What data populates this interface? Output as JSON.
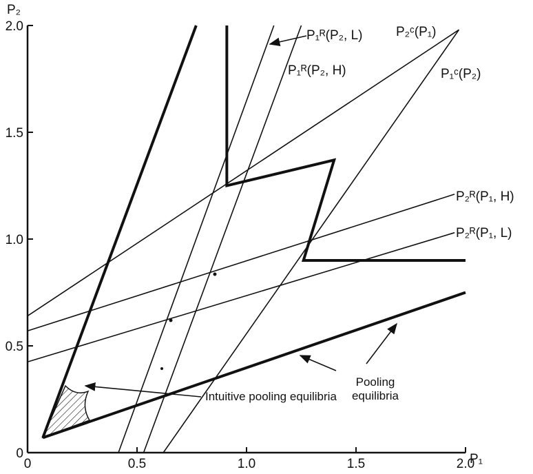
{
  "chart_data": {
    "type": "line",
    "x_label": "P₁",
    "y_label": "P₂",
    "xlim": [
      0,
      2.0
    ],
    "ylim": [
      0,
      2.0
    ],
    "xticks": [
      0,
      0.5,
      {
        "value": 1,
        "label": "1.0"
      },
      1.5,
      {
        "value": 2,
        "label": "2.0"
      }
    ],
    "yticks": [
      0,
      0.5,
      {
        "value": 1,
        "label": "1.0"
      },
      1.5,
      {
        "value": 2,
        "label": "2.0"
      }
    ],
    "series": [
      {
        "x": [
          0.07,
          0.77
        ],
        "values": [
          0.07,
          2.0
        ],
        "width": 4
      },
      {
        "x": [
          0.07,
          2.0
        ],
        "values": [
          0.07,
          0.75
        ],
        "width": 4
      },
      {
        "x": [
          0.91,
          0.91,
          1.4,
          1.26,
          2.0
        ],
        "values": [
          2.0,
          1.25,
          1.37,
          0.9,
          0.9
        ],
        "width": 4
      },
      {
        "name": "P₁ᴿ(P₂, L)",
        "x": [
          0.415,
          1.125
        ],
        "values": [
          0,
          2.0
        ],
        "width": 1.6
      },
      {
        "name": "P₁ᴿ(P₂, H)",
        "x": [
          0.53,
          1.25
        ],
        "values": [
          0,
          2.0
        ],
        "width": 1.6
      },
      {
        "name": "P₂ᶜ(P₁)",
        "x": [
          0,
          1.97
        ],
        "values": [
          0.64,
          1.98
        ],
        "width": 1.6
      },
      {
        "name": "P₁ᶜ(P₂)",
        "x": [
          0.62,
          1.97
        ],
        "values": [
          0,
          1.98
        ],
        "width": 1.6
      },
      {
        "name": "P₂ᴿ(P₁, H)",
        "x": [
          0,
          1.95
        ],
        "values": [
          0.57,
          1.21
        ],
        "width": 1.6
      },
      {
        "name": "P₂ᴿ(P₁, L)",
        "x": [
          0,
          1.95
        ],
        "values": [
          0.425,
          1.03
        ],
        "width": 1.6
      }
    ],
    "annotations": [
      "Pooling equilibria",
      "Intuitive pooling equilibria"
    ]
  }
}
